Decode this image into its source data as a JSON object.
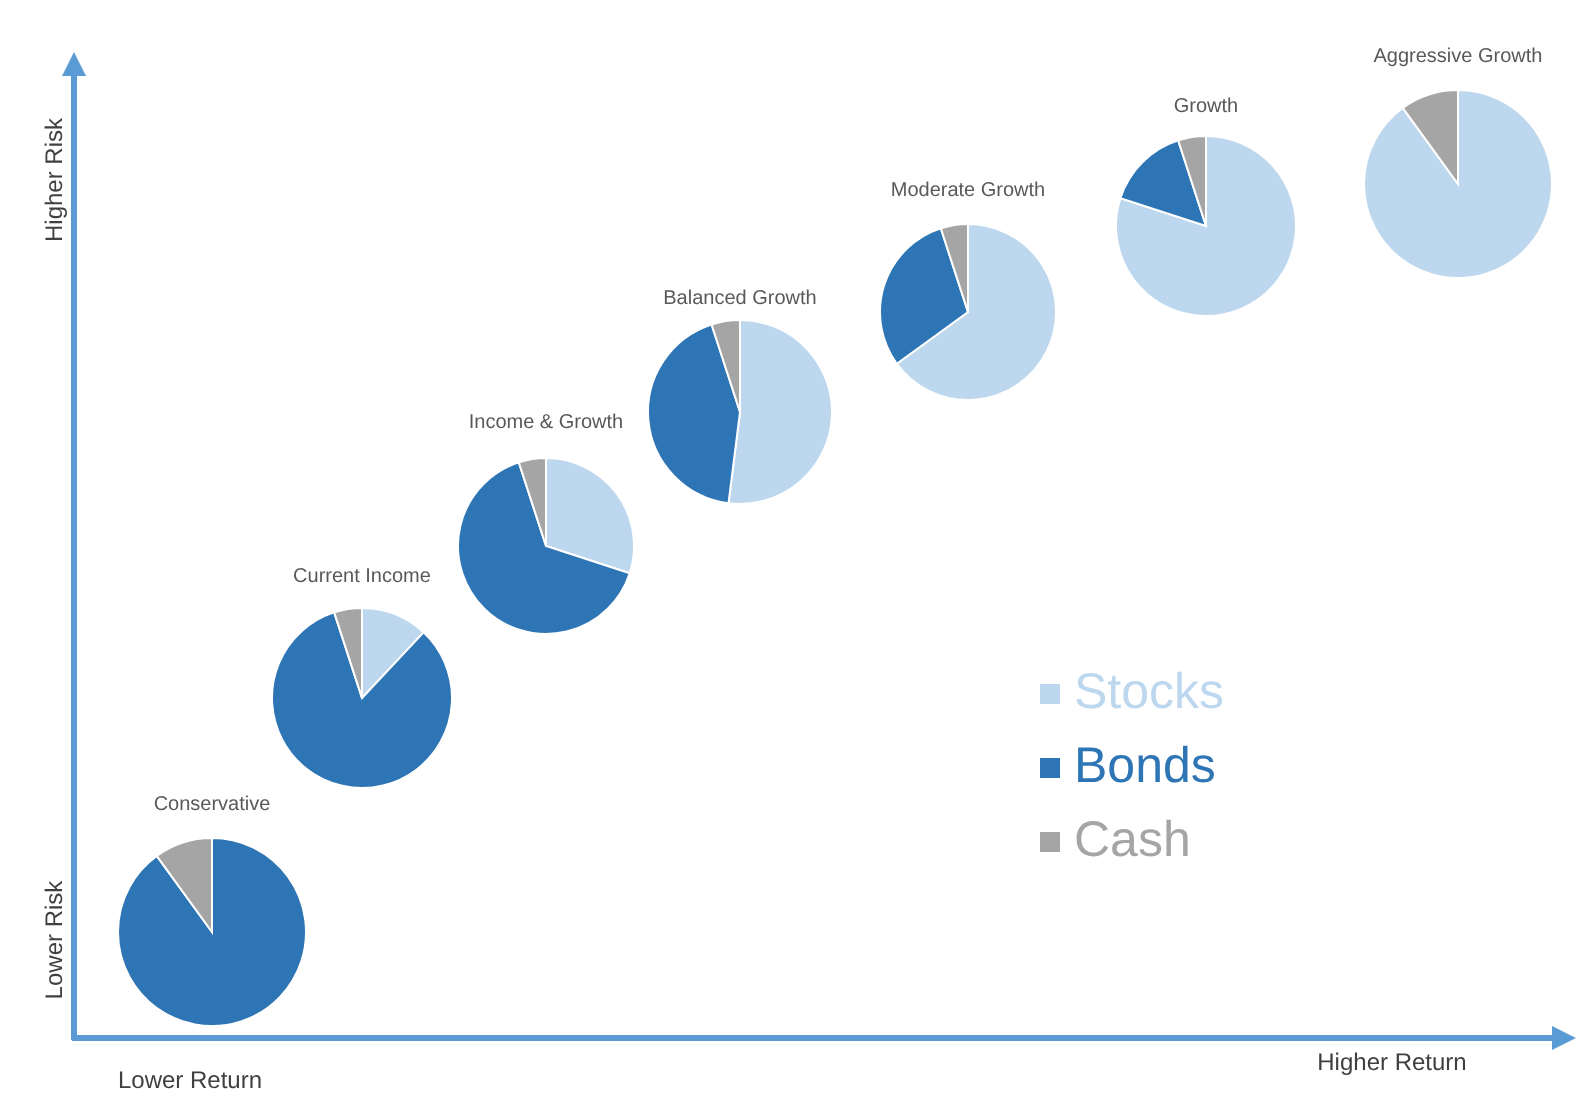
{
  "chart_data": [
    {
      "type": "pie",
      "title": "Conservative",
      "categories": [
        "Stocks",
        "Bonds",
        "Cash"
      ],
      "values": [
        0,
        90,
        10
      ],
      "colors": [
        "#bdd7ee",
        "#2e75b6",
        "#a5a5a5"
      ],
      "legend": "top right"
    },
    {
      "type": "pie",
      "title": "Current Income",
      "categories": [
        null,
        null,
        null
      ],
      "values": [
        12,
        83,
        5
      ],
      "colors": [
        "#bdd7ee",
        "#2e75b6",
        "#a5a5a5"
      ]
    },
    {
      "type": "pie",
      "title": "Income & Growth",
      "categories": [
        null,
        null,
        null
      ],
      "values": [
        30,
        65,
        5
      ],
      "colors": [
        "#bdd7ee",
        "#2e75b6",
        "#a5a5a5"
      ]
    },
    {
      "type": "pie",
      "title": "Balanced Growth",
      "categories": [
        null,
        null,
        null
      ],
      "values": [
        52,
        43,
        5
      ],
      "colors": [
        "#bdd7ee",
        "#2e75b6",
        "#a5a5a5"
      ]
    },
    {
      "type": "pie",
      "title": "Moderate Growth",
      "categories": [
        null,
        null,
        null
      ],
      "values": [
        65,
        30,
        5
      ],
      "colors": [
        "#bdd7ee",
        "#2e75b6",
        "#a5a5a5"
      ]
    },
    {
      "type": "pie",
      "title": "Growth",
      "categories": [
        null,
        null,
        null
      ],
      "values": [
        80,
        15,
        5
      ],
      "colors": [
        "#bdd7ee",
        "#2e75b6",
        "#a5a5a5"
      ]
    },
    {
      "type": "pie",
      "title": "Aggressive Growth",
      "categories": [
        null,
        null,
        null
      ],
      "values": [
        90,
        0,
        10
      ],
      "colors": [
        "#bdd7ee",
        "#2e75b6",
        "#a5a5a5"
      ]
    },
    {
      "type": "other",
      "annotations": [
        "Higher Risk",
        "Lower Risk",
        "Lower Return",
        "Higher Return"
      ]
    }
  ]
}
